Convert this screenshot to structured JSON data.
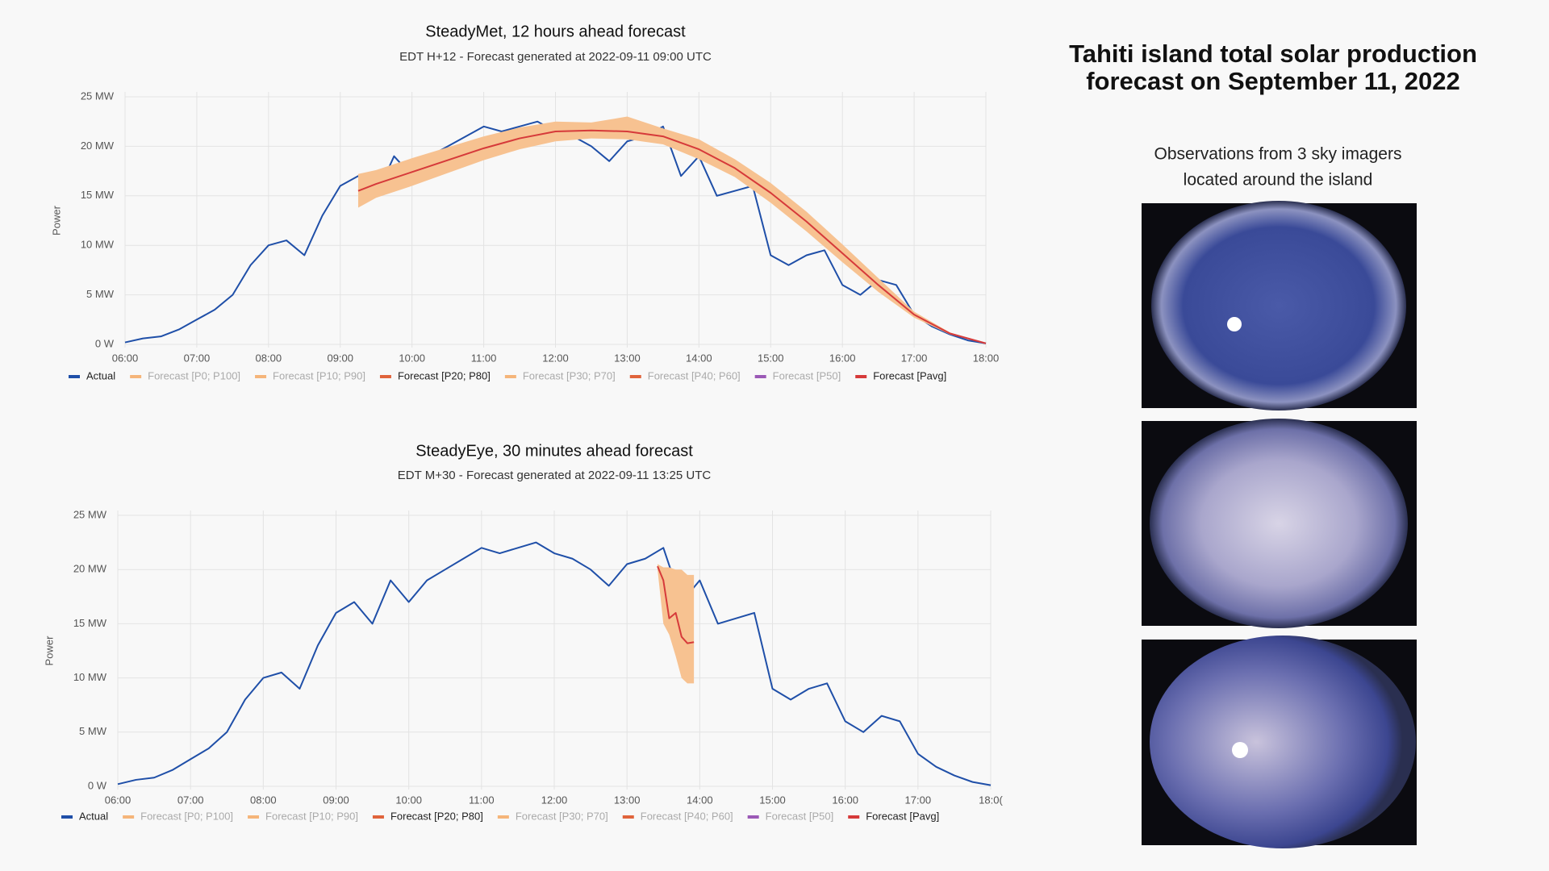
{
  "chart_data": [
    {
      "type": "line",
      "title": "SteadyMet, 12 hours ahead forecast",
      "subtitle": "EDT H+12 - Forecast generated at 2022-09-11 09:00 UTC",
      "ylabel": "Power",
      "xlim": [
        6,
        18
      ],
      "xticks": [
        {
          "value": 6,
          "label": "06:00"
        },
        {
          "value": 7,
          "label": "07:00"
        },
        {
          "value": 8,
          "label": "08:00"
        },
        {
          "value": 9,
          "label": "09:00"
        },
        {
          "value": 10,
          "label": "10:00"
        },
        {
          "value": 11,
          "label": "11:00"
        },
        {
          "value": 12,
          "label": "12:00"
        },
        {
          "value": 13,
          "label": "13:00"
        },
        {
          "value": 14,
          "label": "14:00"
        },
        {
          "value": 15,
          "label": "15:00"
        },
        {
          "value": 16,
          "label": "16:00"
        },
        {
          "value": 17,
          "label": "17:00"
        },
        {
          "value": 18,
          "label": "18:00"
        }
      ],
      "ylim": [
        0,
        25
      ],
      "yticks": [
        {
          "value": 0,
          "label": "0 W"
        },
        {
          "value": 5,
          "label": "5 MW"
        },
        {
          "value": 10,
          "label": "10 MW"
        },
        {
          "value": 15,
          "label": "15 MW"
        },
        {
          "value": 20,
          "label": "20 MW"
        },
        {
          "value": 25,
          "label": "25 MW"
        }
      ],
      "grid": true,
      "series": [
        {
          "name": "Actual",
          "color": "#1f4fa8",
          "visible": true,
          "x": [
            6,
            6.25,
            6.5,
            6.75,
            7,
            7.25,
            7.5,
            7.75,
            8,
            8.25,
            8.5,
            8.75,
            9,
            9.25,
            9.5,
            9.75,
            10,
            10.25,
            10.5,
            10.75,
            11,
            11.25,
            11.5,
            11.75,
            12,
            12.25,
            12.5,
            12.75,
            13,
            13.25,
            13.5,
            13.75,
            14,
            14.25,
            14.5,
            14.75,
            15,
            15.25,
            15.5,
            15.75,
            16,
            16.25,
            16.5,
            16.75,
            17,
            17.25,
            17.5,
            17.75,
            18
          ],
          "values": [
            0.2,
            0.6,
            0.8,
            1.5,
            2.5,
            3.5,
            5,
            8,
            10,
            10.5,
            9,
            13,
            16,
            17,
            15,
            19,
            17,
            19,
            20,
            21,
            22,
            21.5,
            22,
            22.5,
            21.5,
            21,
            20,
            18.5,
            20.5,
            21,
            22,
            17,
            19,
            15,
            15.5,
            16,
            9,
            8,
            9,
            9.5,
            6,
            5,
            6.5,
            6,
            3,
            1.8,
            1,
            0.4,
            0.1
          ]
        },
        {
          "name": "Forecast [P0; P100]",
          "color": "#f5b57a",
          "visible": false
        },
        {
          "name": "Forecast [P10; P90]",
          "color": "#f5b57a",
          "visible": false
        },
        {
          "name": "Forecast [P20; P80]",
          "color": "#e0643c",
          "fill": "#f7c291",
          "visible": true,
          "x": [
            9.25,
            9.5,
            10,
            10.5,
            11,
            11.5,
            12,
            12.5,
            13,
            13.5,
            14,
            14.5,
            15,
            15.5,
            16,
            16.5,
            17,
            17.5,
            18
          ],
          "low": [
            13.8,
            14.8,
            16.0,
            17.3,
            18.6,
            19.7,
            20.5,
            20.8,
            20.7,
            20.2,
            18.7,
            16.9,
            14.3,
            11.4,
            8.3,
            5.3,
            2.7,
            1.0,
            0.1
          ],
          "high": [
            17.2,
            17.6,
            18.8,
            19.9,
            21.0,
            21.9,
            22.5,
            22.4,
            23.0,
            21.8,
            20.7,
            18.7,
            16.3,
            13.4,
            10.1,
            6.7,
            3.3,
            1.2,
            0.1
          ]
        },
        {
          "name": "Forecast [P30; P70]",
          "color": "#f5b57a",
          "visible": false
        },
        {
          "name": "Forecast [P40; P60]",
          "color": "#e0643c",
          "visible": false
        },
        {
          "name": "Forecast [P50]",
          "color": "#9b59b6",
          "visible": false
        },
        {
          "name": "Forecast [Pavg]",
          "color": "#d63a3a",
          "visible": true,
          "x": [
            9.25,
            9.5,
            10,
            10.5,
            11,
            11.5,
            12,
            12.5,
            13,
            13.5,
            14,
            14.5,
            15,
            15.5,
            16,
            16.5,
            17,
            17.5,
            18
          ],
          "values": [
            15.5,
            16.2,
            17.4,
            18.6,
            19.8,
            20.8,
            21.5,
            21.6,
            21.5,
            21,
            19.7,
            17.8,
            15.3,
            12.4,
            9.2,
            6,
            3,
            1.1,
            0.1
          ]
        }
      ]
    },
    {
      "type": "line",
      "title": "SteadyEye, 30 minutes ahead forecast",
      "subtitle": "EDT M+30 - Forecast generated at 2022-09-11 13:25 UTC",
      "ylabel": "Power",
      "xlim": [
        6,
        18
      ],
      "xticks": [
        {
          "value": 6,
          "label": "06:00"
        },
        {
          "value": 7,
          "label": "07:00"
        },
        {
          "value": 8,
          "label": "08:00"
        },
        {
          "value": 9,
          "label": "09:00"
        },
        {
          "value": 10,
          "label": "10:00"
        },
        {
          "value": 11,
          "label": "11:00"
        },
        {
          "value": 12,
          "label": "12:00"
        },
        {
          "value": 13,
          "label": "13:00"
        },
        {
          "value": 14,
          "label": "14:00"
        },
        {
          "value": 15,
          "label": "15:00"
        },
        {
          "value": 16,
          "label": "16:00"
        },
        {
          "value": 17,
          "label": "17:00"
        },
        {
          "value": 18,
          "label": "18:0("
        }
      ],
      "ylim": [
        0,
        25
      ],
      "yticks": [
        {
          "value": 0,
          "label": "0 W"
        },
        {
          "value": 5,
          "label": "5 MW"
        },
        {
          "value": 10,
          "label": "10 MW"
        },
        {
          "value": 15,
          "label": "15 MW"
        },
        {
          "value": 20,
          "label": "20 MW"
        },
        {
          "value": 25,
          "label": "25 MW"
        }
      ],
      "grid": true,
      "series": [
        {
          "name": "Actual",
          "color": "#1f4fa8",
          "visible": true,
          "x": [
            6,
            6.25,
            6.5,
            6.75,
            7,
            7.25,
            7.5,
            7.75,
            8,
            8.25,
            8.5,
            8.75,
            9,
            9.25,
            9.5,
            9.75,
            10,
            10.25,
            10.5,
            10.75,
            11,
            11.25,
            11.5,
            11.75,
            12,
            12.25,
            12.5,
            12.75,
            13,
            13.25,
            13.5,
            13.75,
            14,
            14.25,
            14.5,
            14.75,
            15,
            15.25,
            15.5,
            15.75,
            16,
            16.25,
            16.5,
            16.75,
            17,
            17.25,
            17.5,
            17.75,
            18
          ],
          "values": [
            0.2,
            0.6,
            0.8,
            1.5,
            2.5,
            3.5,
            5,
            8,
            10,
            10.5,
            9,
            13,
            16,
            17,
            15,
            19,
            17,
            19,
            20,
            21,
            22,
            21.5,
            22,
            22.5,
            21.5,
            21,
            20,
            18.5,
            20.5,
            21,
            22,
            17,
            19,
            15,
            15.5,
            16,
            9,
            8,
            9,
            9.5,
            6,
            5,
            6.5,
            6,
            3,
            1.8,
            1,
            0.4,
            0.1
          ]
        },
        {
          "name": "Forecast [P0; P100]",
          "color": "#f5b57a",
          "visible": false
        },
        {
          "name": "Forecast [P10; P90]",
          "color": "#f5b57a",
          "visible": false
        },
        {
          "name": "Forecast [P20; P80]",
          "color": "#e0643c",
          "fill": "#f7c291",
          "visible": true,
          "x": [
            13.42,
            13.5,
            13.58,
            13.67,
            13.75,
            13.83,
            13.92
          ],
          "low": [
            20,
            15,
            14,
            12,
            10,
            9.5,
            9.5
          ],
          "high": [
            20.5,
            20.2,
            20.2,
            20,
            20,
            19.5,
            19.5
          ]
        },
        {
          "name": "Forecast [P30; P70]",
          "color": "#f5b57a",
          "visible": false
        },
        {
          "name": "Forecast [P40; P60]",
          "color": "#e0643c",
          "visible": false
        },
        {
          "name": "Forecast [P50]",
          "color": "#9b59b6",
          "visible": false
        },
        {
          "name": "Forecast [Pavg]",
          "color": "#d63a3a",
          "visible": true,
          "x": [
            13.42,
            13.5,
            13.58,
            13.67,
            13.75,
            13.83,
            13.92
          ],
          "values": [
            20.3,
            19,
            15.5,
            16,
            13.8,
            13.2,
            13.3
          ]
        }
      ]
    }
  ],
  "panel": {
    "title_lines": [
      "Tahiti island total solar production",
      "forecast on September 11, 2022"
    ],
    "caption_lines": [
      "Observations from 3 sky imagers",
      "located around the island"
    ]
  }
}
